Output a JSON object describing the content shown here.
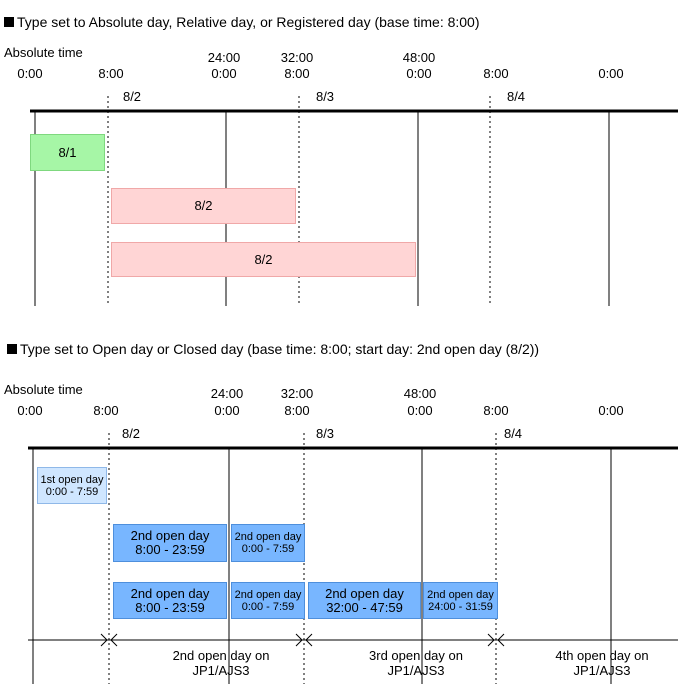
{
  "section1": {
    "title": "Type set to Absolute day, Relative day, or Registered day (base time: 8:00)",
    "axis_label": "Absolute time",
    "top_labels": [
      "24:00",
      "32:00",
      "48:00"
    ],
    "times": [
      "0:00",
      "8:00",
      "0:00",
      "8:00",
      "0:00",
      "8:00",
      "0:00"
    ],
    "dates": [
      "8/2",
      "8/3",
      "8/4"
    ],
    "bars": [
      "8/1",
      "8/2",
      "8/2"
    ]
  },
  "section2": {
    "title": "Type set to Open day or Closed day (base time: 8:00; start day: 2nd open day (8/2))",
    "axis_label": "Absolute time",
    "top_labels": [
      "24:00",
      "32:00",
      "48:00"
    ],
    "times": [
      "0:00",
      "8:00",
      "0:00",
      "8:00",
      "0:00",
      "8:00",
      "0:00"
    ],
    "dates": [
      "8/2",
      "8/3",
      "8/4"
    ],
    "bar_first": {
      "l1": "1st open day",
      "l2": "0:00 - 7:59"
    },
    "row2": [
      {
        "l1": "2nd open day",
        "l2": "8:00 - 23:59"
      },
      {
        "l1": "2nd open day",
        "l2": "0:00 - 7:59"
      }
    ],
    "row3": [
      {
        "l1": "2nd open day",
        "l2": "8:00 - 23:59"
      },
      {
        "l1": "2nd open day",
        "l2": "0:00 - 7:59"
      },
      {
        "l1": "2nd open day",
        "l2": "32:00 - 47:59"
      },
      {
        "l1": "2nd open day",
        "l2": "24:00 - 31:59"
      }
    ],
    "ranges": [
      {
        "l1": "2nd open day on",
        "l2": "JP1/AJS3"
      },
      {
        "l1": "3rd open day on",
        "l2": "JP1/AJS3"
      },
      {
        "l1": "4th open day on",
        "l2": "JP1/AJS3"
      }
    ]
  }
}
